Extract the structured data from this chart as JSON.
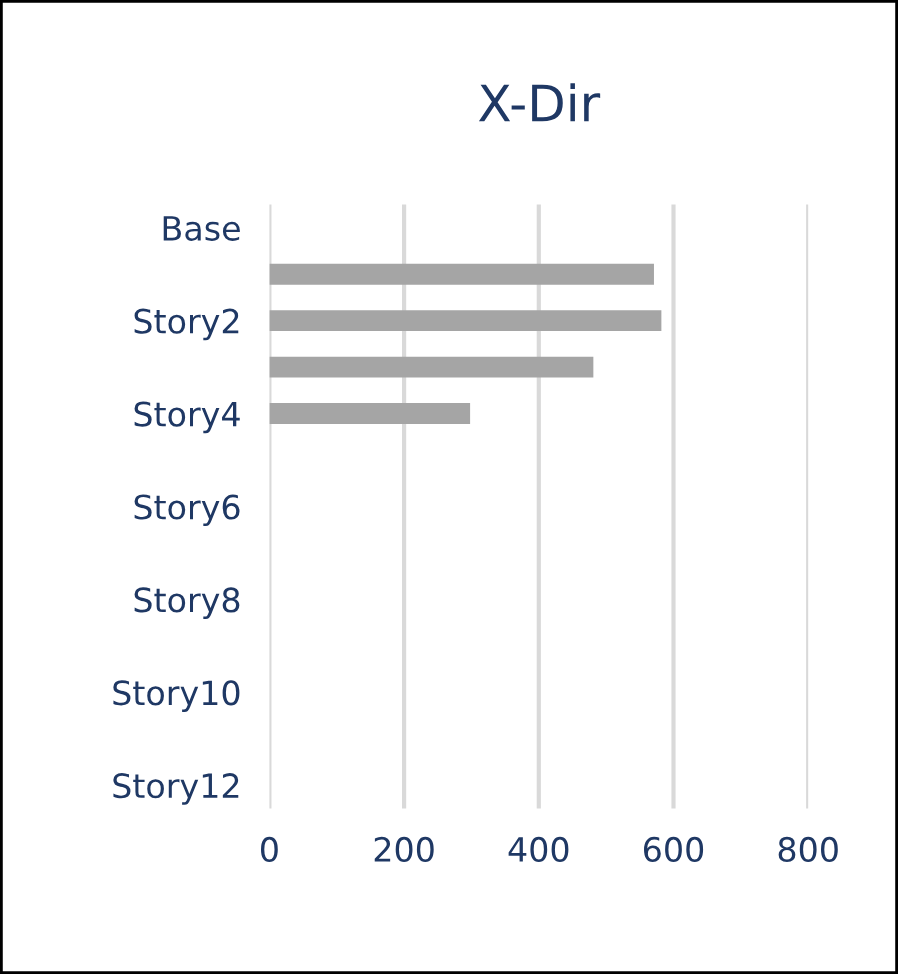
{
  "chart_data": {
    "type": "bar",
    "orientation": "horizontal",
    "title": "X-Dir",
    "categories": [
      "Base",
      null,
      "Story2",
      null,
      "Story4",
      null,
      "Story6",
      null,
      "Story8",
      null,
      "Story10",
      null,
      "Story12"
    ],
    "series": [
      {
        "color": "#a5a5a5",
        "values": [
          0,
          571,
          582,
          481,
          298,
          0,
          0,
          0,
          0,
          0,
          0,
          0,
          0
        ]
      }
    ],
    "xlim": [
      0,
      800
    ],
    "xticks": [
      0,
      200,
      400,
      600,
      800
    ],
    "grid": "x",
    "legend": false
  }
}
